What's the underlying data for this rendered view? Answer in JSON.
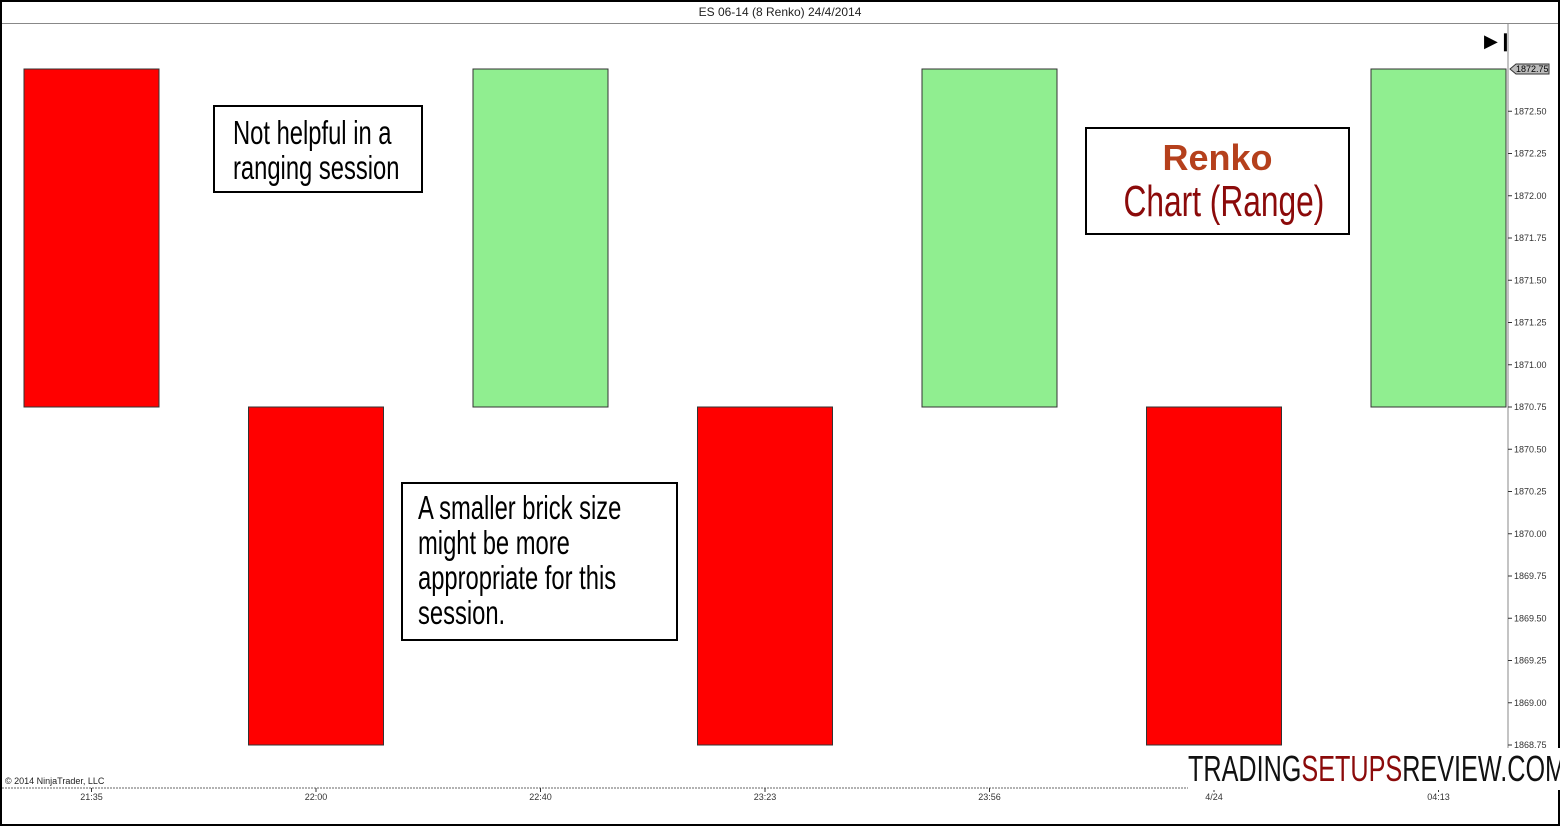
{
  "header": {
    "title": "ES 06-14 (8 Renko)  24/4/2014"
  },
  "annotations": {
    "note1": [
      "Not helpful in a",
      "ranging session"
    ],
    "note2": [
      "A smaller brick size",
      "might be more",
      "appropriate for this",
      "session."
    ],
    "label_line1": "Renko",
    "label_line2": "Chart (Range)"
  },
  "watermark": {
    "part1": "TRADING",
    "part2": "SETUPS",
    "part3": "REVIEW.COM"
  },
  "copyright": "© 2014 NinjaTrader, LLC",
  "icons": {
    "skip_to_end": "skip-to-end-icon"
  },
  "colors": {
    "up": "#90ee90",
    "down": "#ff0000",
    "label_red": "#b5401c",
    "label_darkred": "#8b0a0a"
  },
  "chart_data": {
    "type": "renko",
    "title": "ES 06-14 (8 Renko)  24/4/2014",
    "brick_size": 2.0,
    "categories": [
      "21:35",
      "22:00",
      "22:40",
      "23:23",
      "23:56",
      "4/24",
      "04:13"
    ],
    "bricks": [
      {
        "open": 1872.75,
        "close": 1870.75,
        "direction": "down"
      },
      {
        "open": 1870.75,
        "close": 1868.75,
        "direction": "down"
      },
      {
        "open": 1870.75,
        "close": 1872.75,
        "direction": "up"
      },
      {
        "open": 1870.75,
        "close": 1868.75,
        "direction": "down"
      },
      {
        "open": 1870.75,
        "close": 1872.75,
        "direction": "up"
      },
      {
        "open": 1870.75,
        "close": 1868.75,
        "direction": "down"
      },
      {
        "open": 1870.75,
        "close": 1872.75,
        "direction": "up"
      }
    ],
    "x_tick_labels": [
      "21:35",
      "22:00",
      "22:40",
      "23:23",
      "23:56",
      "4/24",
      "04:13"
    ],
    "y_tick_labels": [
      "1872.50",
      "1872.25",
      "1872.00",
      "1871.75",
      "1871.50",
      "1871.25",
      "1871.00",
      "1870.75",
      "1870.50",
      "1870.25",
      "1870.00",
      "1869.75",
      "1869.50",
      "1869.25",
      "1869.00",
      "1868.75"
    ],
    "last_price_label": "1872.75",
    "ylim": [
      1868.75,
      1872.75
    ],
    "grid": false
  }
}
